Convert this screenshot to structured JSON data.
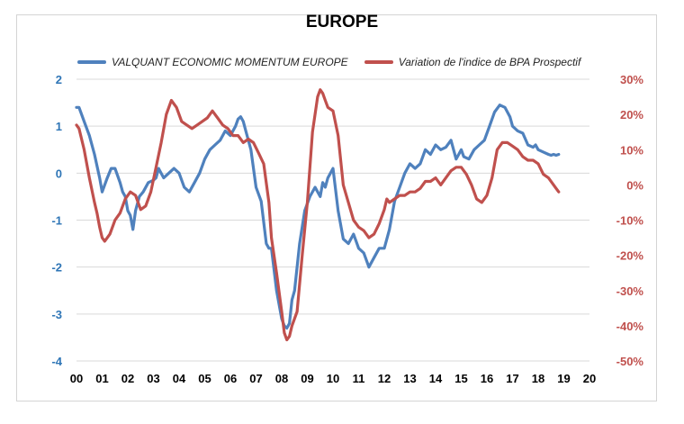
{
  "chart_data": {
    "type": "line",
    "title": "EUROPE",
    "legend_position": "top",
    "x_tick_labels": [
      "00",
      "01",
      "02",
      "03",
      "04",
      "05",
      "06",
      "07",
      "08",
      "09",
      "10",
      "11",
      "12",
      "13",
      "14",
      "15",
      "16",
      "17",
      "18",
      "19",
      "20"
    ],
    "y_left": {
      "ylim": [
        -4,
        2
      ],
      "ticks": [
        2,
        1,
        0,
        -1,
        -2,
        -3,
        -4
      ],
      "tick_labels": [
        "2",
        "1",
        "0",
        "-1",
        "-2",
        "-3",
        "-4"
      ]
    },
    "y_right": {
      "ylim": [
        -50,
        30
      ],
      "ticks": [
        30,
        20,
        10,
        0,
        -10,
        -20,
        -30,
        -40,
        -50
      ],
      "tick_labels": [
        "30%",
        "20%",
        "10%",
        "0%",
        "-10%",
        "-20%",
        "-30%",
        "-40%",
        "-50%"
      ]
    },
    "grid": "horizontal",
    "series": [
      {
        "name": "VALQUANT ECONOMIC MOMENTUM EUROPE",
        "axis": "left",
        "color": "#4F81BD",
        "x": [
          0.0,
          0.1,
          0.3,
          0.5,
          0.7,
          0.9,
          1.0,
          1.2,
          1.35,
          1.5,
          1.7,
          1.8,
          1.9,
          2.0,
          2.1,
          2.2,
          2.3,
          2.45,
          2.6,
          2.8,
          3.0,
          3.1,
          3.2,
          3.4,
          3.6,
          3.8,
          4.0,
          4.2,
          4.4,
          4.6,
          4.8,
          5.0,
          5.2,
          5.4,
          5.6,
          5.8,
          6.0,
          6.2,
          6.3,
          6.4,
          6.5,
          6.6,
          6.8,
          7.0,
          7.2,
          7.4,
          7.5,
          7.6,
          7.8,
          8.0,
          8.1,
          8.2,
          8.3,
          8.4,
          8.5,
          8.7,
          8.9,
          9.1,
          9.3,
          9.5,
          9.6,
          9.7,
          9.8,
          9.9,
          10.0,
          10.2,
          10.4,
          10.6,
          10.8,
          10.9,
          11.0,
          11.2,
          11.4,
          11.6,
          11.8,
          12.0,
          12.2,
          12.4,
          12.6,
          12.8,
          13.0,
          13.2,
          13.4,
          13.6,
          13.8,
          14.0,
          14.2,
          14.4,
          14.6,
          14.8,
          14.9,
          15.0,
          15.1,
          15.3,
          15.5,
          15.7,
          15.9,
          16.1,
          16.3,
          16.5,
          16.7,
          16.9,
          17.0,
          17.2,
          17.4,
          17.6,
          17.8,
          17.9,
          18.0,
          18.2,
          18.4,
          18.5,
          18.6,
          18.7,
          18.8
        ],
        "y": [
          1.4,
          1.4,
          1.1,
          0.8,
          0.4,
          -0.1,
          -0.4,
          -0.1,
          0.1,
          0.1,
          -0.2,
          -0.4,
          -0.5,
          -0.8,
          -0.9,
          -1.2,
          -0.8,
          -0.5,
          -0.4,
          -0.2,
          -0.15,
          -0.1,
          0.1,
          -0.1,
          0.0,
          0.1,
          0.0,
          -0.3,
          -0.4,
          -0.2,
          0.0,
          0.3,
          0.5,
          0.6,
          0.7,
          0.9,
          0.8,
          1.0,
          1.15,
          1.2,
          1.1,
          0.9,
          0.5,
          -0.3,
          -0.6,
          -1.5,
          -1.6,
          -1.6,
          -2.5,
          -3.1,
          -3.25,
          -3.3,
          -3.2,
          -2.7,
          -2.5,
          -1.5,
          -0.8,
          -0.5,
          -0.3,
          -0.5,
          -0.2,
          -0.3,
          -0.1,
          0.0,
          0.1,
          -0.8,
          -1.4,
          -1.5,
          -1.3,
          -1.45,
          -1.6,
          -1.7,
          -2.0,
          -1.8,
          -1.6,
          -1.6,
          -1.2,
          -0.6,
          -0.3,
          0.0,
          0.2,
          0.1,
          0.2,
          0.5,
          0.4,
          0.6,
          0.5,
          0.55,
          0.7,
          0.3,
          0.4,
          0.5,
          0.35,
          0.3,
          0.5,
          0.6,
          0.7,
          1.0,
          1.3,
          1.45,
          1.4,
          1.2,
          1.0,
          0.9,
          0.85,
          0.6,
          0.55,
          0.6,
          0.5,
          0.45,
          0.4,
          0.38,
          0.4,
          0.38,
          0.4
        ],
        "x_coords_note": "x in years since 2000"
      },
      {
        "name": "Variation de l'indice de BPA Prospectif",
        "axis": "right",
        "color": "#C0504D",
        "x": [
          0.0,
          0.1,
          0.3,
          0.5,
          0.7,
          0.8,
          0.9,
          1.0,
          1.1,
          1.2,
          1.3,
          1.5,
          1.7,
          1.9,
          2.1,
          2.3,
          2.5,
          2.7,
          2.9,
          3.1,
          3.3,
          3.5,
          3.6,
          3.7,
          3.9,
          4.1,
          4.3,
          4.5,
          4.7,
          4.9,
          5.1,
          5.3,
          5.5,
          5.7,
          5.9,
          6.1,
          6.3,
          6.5,
          6.7,
          6.9,
          7.1,
          7.3,
          7.5,
          7.6,
          7.8,
          8.0,
          8.1,
          8.2,
          8.3,
          8.4,
          8.6,
          8.8,
          9.0,
          9.2,
          9.4,
          9.5,
          9.6,
          9.7,
          9.8,
          10.0,
          10.2,
          10.4,
          10.6,
          10.8,
          11.0,
          11.2,
          11.4,
          11.6,
          11.8,
          12.0,
          12.1,
          12.2,
          12.4,
          12.6,
          12.8,
          13.0,
          13.2,
          13.4,
          13.6,
          13.8,
          14.0,
          14.2,
          14.4,
          14.6,
          14.8,
          15.0,
          15.2,
          15.4,
          15.6,
          15.8,
          16.0,
          16.2,
          16.4,
          16.6,
          16.8,
          17.0,
          17.2,
          17.4,
          17.6,
          17.8,
          18.0,
          18.2,
          18.4,
          18.6,
          18.7,
          18.8
        ],
        "y": [
          17,
          16,
          10,
          2,
          -5,
          -8,
          -12,
          -15,
          -16,
          -15,
          -14,
          -10,
          -8,
          -4,
          -2,
          -3,
          -7,
          -6,
          -2,
          5,
          12,
          20,
          22,
          24,
          22,
          18,
          17,
          16,
          17,
          18,
          19,
          21,
          19,
          17,
          16,
          14,
          14,
          12,
          13,
          12,
          9,
          6,
          -5,
          -15,
          -25,
          -36,
          -42,
          -44,
          -43,
          -40,
          -36,
          -20,
          -5,
          15,
          25,
          27,
          26,
          24,
          22,
          21,
          14,
          0,
          -5,
          -10,
          -12,
          -13,
          -15,
          -14,
          -11,
          -7,
          -4,
          -5,
          -4,
          -3,
          -3,
          -2,
          -2,
          -1,
          1,
          1,
          2,
          0,
          2,
          4,
          5,
          5,
          3,
          0,
          -4,
          -5,
          -3,
          2,
          10,
          12,
          12,
          11,
          10,
          8,
          7,
          7,
          6,
          3,
          2,
          0,
          -1,
          -2
        ]
      }
    ]
  }
}
